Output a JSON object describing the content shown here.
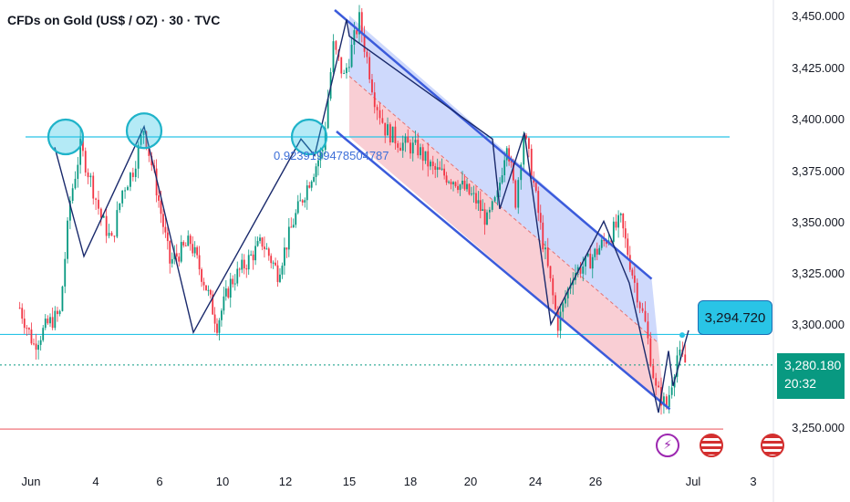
{
  "header": {
    "title": "CFDs on Gold (US$ / OZ) · 30 · TVC"
  },
  "price_axis": {
    "labels": [
      "3,450.000",
      "3,425.000",
      "3,400.000",
      "3,375.000",
      "3,350.000",
      "3,325.000",
      "3,300.000",
      "3,250.000"
    ]
  },
  "date_axis": {
    "labels": [
      "Jun",
      "4",
      "6",
      "10",
      "12",
      "15",
      "18",
      "20",
      "24",
      "26",
      "Jul",
      "3"
    ]
  },
  "current_price": {
    "price": "3,280.180",
    "countdown": "20:32"
  },
  "target_tag": {
    "price": "3,294.720"
  },
  "fib_label": {
    "text": "0.9239199478504787"
  },
  "events": {
    "bolt_icon": "lightning-icon",
    "flag_icon": "us-flag-icon"
  },
  "colors": {
    "up": "#089981",
    "down": "#f23645",
    "channel_upper": "#3b5bdb",
    "channel_fill_upper": "#c5d2fb",
    "channel_fill_lower": "#f8c6cc",
    "level_line": "#29c4e6",
    "support_line": "#f28b91"
  },
  "chart_data": {
    "type": "candlestick",
    "symbol": "CFDs on Gold (US$ / OZ)",
    "timeframe": "30",
    "source": "TVC",
    "ylim": [
      3235,
      3455
    ],
    "price_ticks": [
      3450,
      3425,
      3400,
      3375,
      3350,
      3325,
      3300,
      3250
    ],
    "date_ticks": [
      "Jun",
      "4",
      "6",
      "10",
      "12",
      "15",
      "18",
      "20",
      "24",
      "26",
      "Jul",
      "3"
    ],
    "price_path": [
      [
        "Jun 2",
        3308
      ],
      [
        "Jun 2",
        3290
      ],
      [
        "Jun 2",
        3300
      ],
      [
        "Jun 3",
        3305
      ],
      [
        "Jun 3",
        3360
      ],
      [
        "Jun 3",
        3386
      ],
      [
        "Jun 3",
        3370
      ],
      [
        "Jun 4",
        3352
      ],
      [
        "Jun 4",
        3340
      ],
      [
        "Jun 4",
        3365
      ],
      [
        "Jun 5",
        3375
      ],
      [
        "Jun 5",
        3395
      ],
      [
        "Jun 5",
        3372
      ],
      [
        "Jun 6",
        3330
      ],
      [
        "Jun 6",
        3340
      ],
      [
        "Jun 9",
        3318
      ],
      [
        "Jun 9",
        3300
      ],
      [
        "Jun 10",
        3320
      ],
      [
        "Jun 10",
        3330
      ],
      [
        "Jun 11",
        3340
      ],
      [
        "Jun 11",
        3325
      ],
      [
        "Jun 12",
        3350
      ],
      [
        "Jun 12",
        3370
      ],
      [
        "Jun 13",
        3385
      ],
      [
        "Jun 13",
        3435
      ],
      [
        "Jun 13",
        3420
      ],
      [
        "Jun 15",
        3448
      ],
      [
        "Jun 16",
        3410
      ],
      [
        "Jun 16",
        3395
      ],
      [
        "Jun 17",
        3388
      ],
      [
        "Jun 18",
        3385
      ],
      [
        "Jun 18",
        3375
      ],
      [
        "Jun 19",
        3370
      ],
      [
        "Jun 20",
        3360
      ],
      [
        "Jun 20",
        3350
      ],
      [
        "Jun 21",
        3362
      ],
      [
        "Jun 22",
        3390
      ],
      [
        "Jun 22",
        3360
      ],
      [
        "Jun 23",
        3393
      ],
      [
        "Jun 23",
        3375
      ],
      [
        "Jun 24",
        3340
      ],
      [
        "Jun 24",
        3300
      ],
      [
        "Jun 25",
        3325
      ],
      [
        "Jun 25",
        3330
      ],
      [
        "Jun 26",
        3340
      ],
      [
        "Jun 26",
        3350
      ],
      [
        "Jun 27",
        3320
      ],
      [
        "Jun 27",
        3300
      ],
      [
        "Jun 27",
        3268
      ],
      [
        "Jun 28",
        3260
      ],
      [
        "Jun 28",
        3285
      ],
      [
        "Jun 28",
        3280
      ]
    ],
    "annotations": {
      "resistance_level": 3391,
      "mid_level": 3295,
      "support_level": 3249,
      "current_price": 3280.18,
      "target_price": 3294.72,
      "fib_ratio": 0.9239199478504787,
      "descending_channel": {
        "upper": [
          [
            "Jun 15",
            3450
          ],
          [
            "Jun 27",
            3322
          ]
        ],
        "lower": [
          [
            "Jun 15",
            3391
          ],
          [
            "Jun 28",
            3260
          ]
        ]
      },
      "marked_tops": [
        "Jun 3",
        "Jun 5",
        "Jun 13"
      ]
    }
  }
}
